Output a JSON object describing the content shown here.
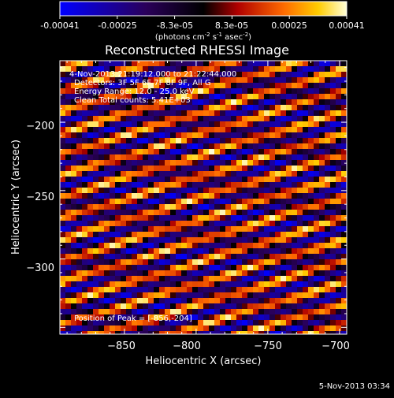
{
  "colorbar": {
    "ticks": [
      "-0.00041",
      "-0.00025",
      "-8.3e-05",
      "8.3e-05",
      "0.00025",
      "0.00041"
    ],
    "unit_base": "(photons cm",
    "unit_exp1": "-2",
    "unit_mid": " s",
    "unit_exp2": "-1",
    "unit_tail": " asec",
    "unit_exp3": "-2",
    "unit_close": ")"
  },
  "chart_data": {
    "type": "heatmap",
    "title": "Reconstructed RHESSI Image",
    "xlabel": "Heliocentric X (arcsec)",
    "ylabel": "Heliocentric Y (arcsec)",
    "xlim": [
      -895,
      -695
    ],
    "ylim": [
      -355,
      -155
    ],
    "x_ticks": [
      -850,
      -800,
      -750,
      -700
    ],
    "x_tick_labels": [
      "−850",
      "−800",
      "−750",
      "−700"
    ],
    "y_ticks": [
      -200,
      -250,
      -300
    ],
    "y_tick_labels": [
      "−200",
      "−250",
      "−300"
    ],
    "color_range": [
      -0.00041,
      0.00041
    ],
    "annotations": [
      "4-Nov-2013 21:19:12.000 to 21:22:44.000",
      "Detectors: 3F 5F 6F 7F 8F 9F, All G",
      "Energy Range: 12.0 - 25.0 keV",
      "Clean      Total counts: 5.41E+03"
    ],
    "peak_label": "Position of Peak = [-856,-204]",
    "peak": [
      -856,
      -204
    ]
  },
  "footer": {
    "date": "5-Nov-2013 03:34"
  }
}
